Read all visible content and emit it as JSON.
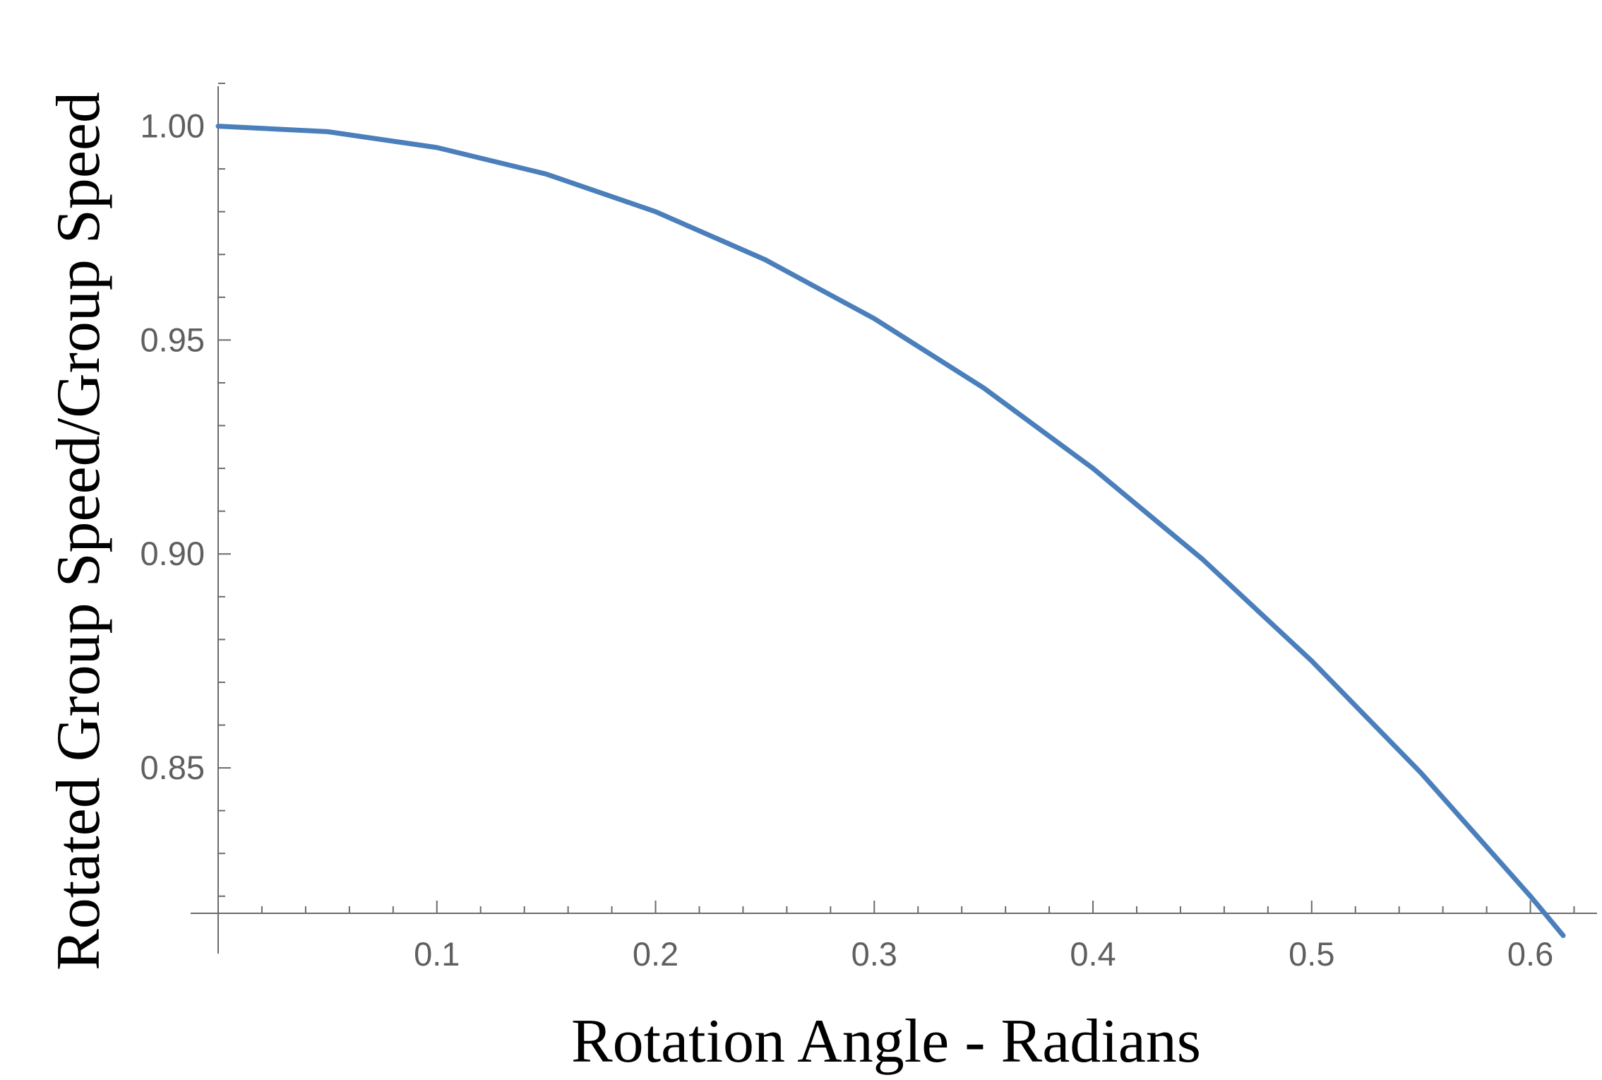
{
  "chart_data": {
    "type": "line",
    "title": "",
    "xlabel": "Rotation Angle - Radians",
    "ylabel": "Rotated Group Speed/Group Speed",
    "xlim": [
      0,
      0.625
    ],
    "ylim": [
      0.816,
      1.01
    ],
    "grid": false,
    "x_ticks": [
      0.1,
      0.2,
      0.3,
      0.4,
      0.5,
      0.6
    ],
    "x_tick_labels": [
      "0.1",
      "0.2",
      "0.3",
      "0.4",
      "0.5",
      "0.6"
    ],
    "y_ticks": [
      0.85,
      0.9,
      0.95,
      1.0
    ],
    "y_tick_labels": [
      "0.85",
      "0.90",
      "0.95",
      "1.00"
    ],
    "series": [
      {
        "color": "#4a7fbb",
        "x": [
          0.0,
          0.05,
          0.1,
          0.15,
          0.2,
          0.25,
          0.3,
          0.35,
          0.4,
          0.45,
          0.5,
          0.55,
          0.6,
          0.615
        ],
        "y": [
          1.0,
          0.9987,
          0.995,
          0.9888,
          0.98,
          0.9688,
          0.955,
          0.9388,
          0.92,
          0.8988,
          0.875,
          0.8488,
          0.82,
          0.8108
        ]
      }
    ]
  }
}
